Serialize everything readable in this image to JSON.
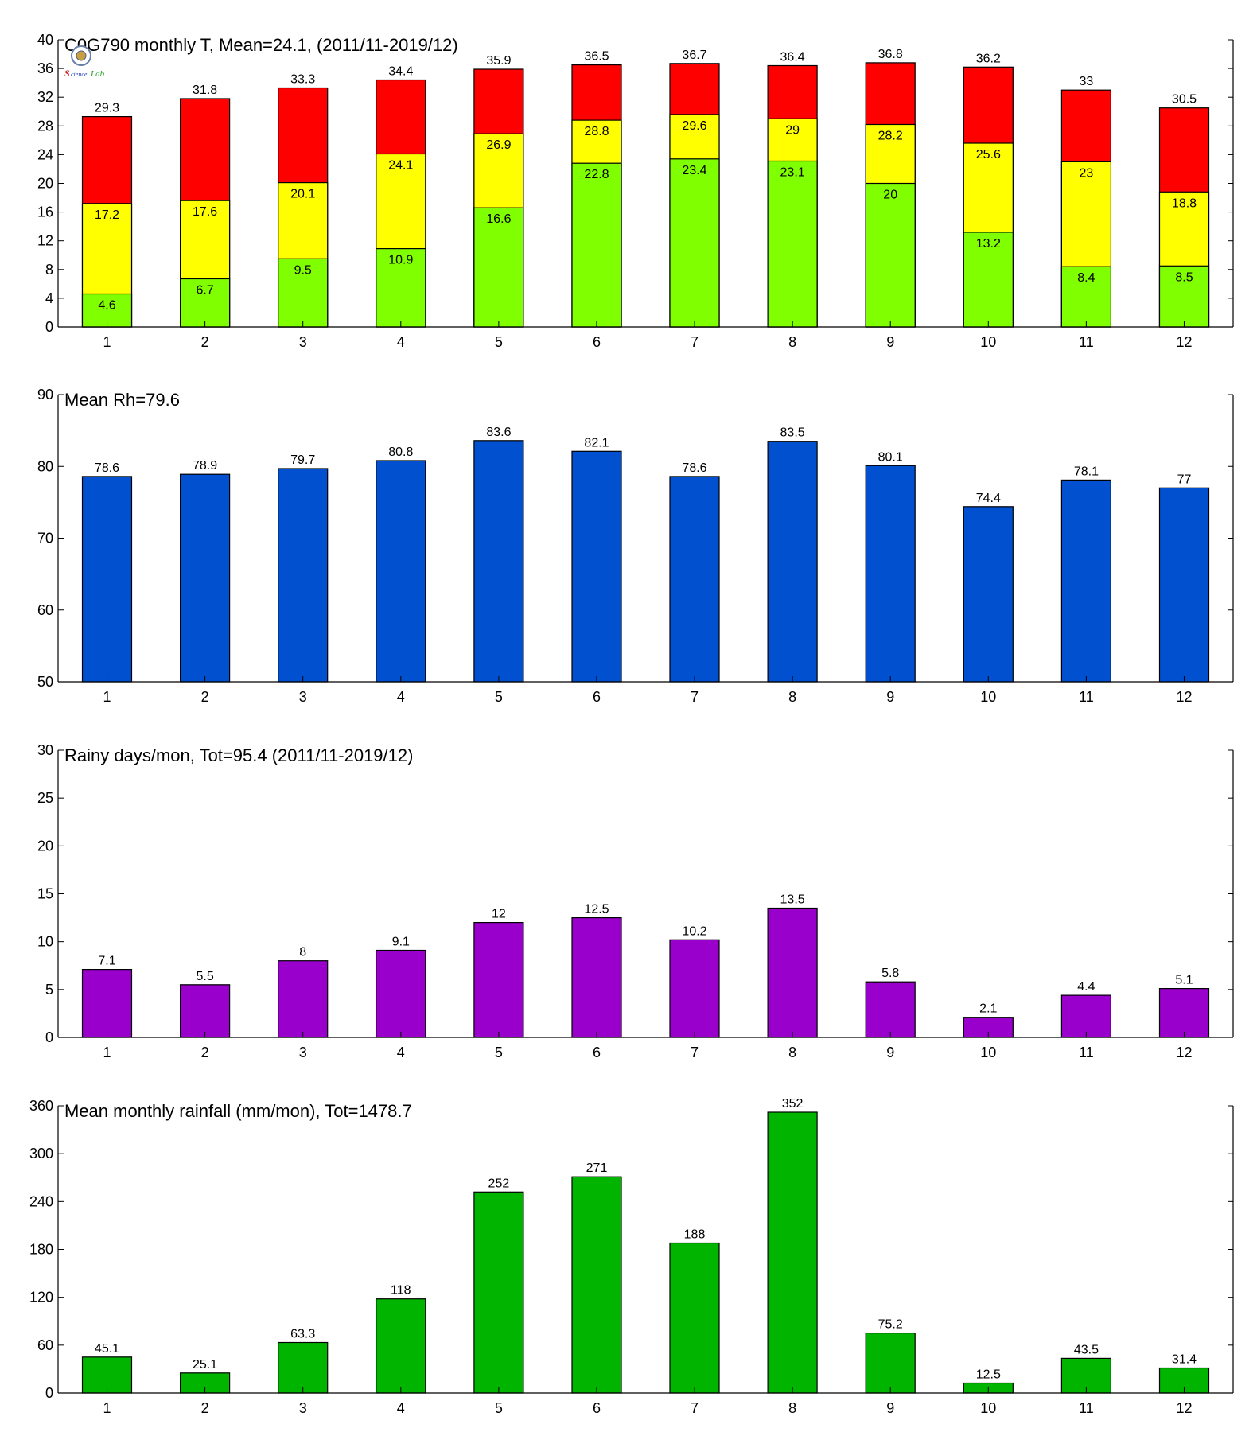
{
  "chart_data": [
    {
      "type": "bar",
      "title": "C0G790 monthly T, Mean=24.1, (2011/11-2019/12)",
      "categories": [
        "1",
        "2",
        "3",
        "4",
        "5",
        "6",
        "7",
        "8",
        "9",
        "10",
        "11",
        "12"
      ],
      "ylim": [
        0,
        40
      ],
      "yticks": [
        0,
        4,
        8,
        12,
        16,
        20,
        24,
        28,
        32,
        36,
        40
      ],
      "stacked_levels": true,
      "series": [
        {
          "values": [
            29.3,
            31.8,
            33.3,
            34.4,
            35.9,
            36.5,
            36.7,
            36.4,
            36.8,
            36.2,
            33,
            30.5
          ],
          "color": "#ff0000"
        },
        {
          "values": [
            17.2,
            17.6,
            20.1,
            24.1,
            26.9,
            28.8,
            29.6,
            29,
            28.2,
            25.6,
            23,
            18.8
          ],
          "color": "#ffff00"
        },
        {
          "values": [
            4.6,
            6.7,
            9.5,
            10.9,
            16.6,
            22.8,
            23.4,
            23.1,
            20,
            13.2,
            8.4,
            8.5
          ],
          "color": "#80ff00"
        }
      ],
      "grid": false
    },
    {
      "type": "bar",
      "title": "Mean Rh=79.6",
      "categories": [
        "1",
        "2",
        "3",
        "4",
        "5",
        "6",
        "7",
        "8",
        "9",
        "10",
        "11",
        "12"
      ],
      "ylim": [
        50,
        90
      ],
      "yticks": [
        50,
        60,
        70,
        80,
        90
      ],
      "series": [
        {
          "values": [
            78.6,
            78.9,
            79.7,
            80.8,
            83.6,
            82.1,
            78.6,
            83.5,
            80.1,
            74.4,
            78.1,
            77
          ],
          "color": "#0050d0"
        }
      ],
      "grid": false
    },
    {
      "type": "bar",
      "title": "Rainy days/mon, Tot=95.4 (2011/11-2019/12)",
      "categories": [
        "1",
        "2",
        "3",
        "4",
        "5",
        "6",
        "7",
        "8",
        "9",
        "10",
        "11",
        "12"
      ],
      "ylim": [
        0,
        30
      ],
      "yticks": [
        0,
        5,
        10,
        15,
        20,
        25,
        30
      ],
      "series": [
        {
          "values": [
            7.1,
            5.5,
            8,
            9.1,
            12,
            12.5,
            10.2,
            13.5,
            5.8,
            2.1,
            4.4,
            5.1
          ],
          "color": "#9900cc"
        }
      ],
      "grid": false
    },
    {
      "type": "bar",
      "title": "Mean monthly rainfall (mm/mon), Tot=1478.7",
      "categories": [
        "1",
        "2",
        "3",
        "4",
        "5",
        "6",
        "7",
        "8",
        "9",
        "10",
        "11",
        "12"
      ],
      "ylim": [
        0,
        360
      ],
      "yticks": [
        0,
        60,
        120,
        180,
        240,
        300,
        360
      ],
      "series": [
        {
          "values": [
            45.1,
            25.1,
            63.3,
            118,
            252,
            271,
            188,
            352,
            75.2,
            12.5,
            43.5,
            31.4
          ],
          "color": "#00b400"
        }
      ],
      "grid": false
    }
  ],
  "logo": {
    "text": "Lab"
  }
}
